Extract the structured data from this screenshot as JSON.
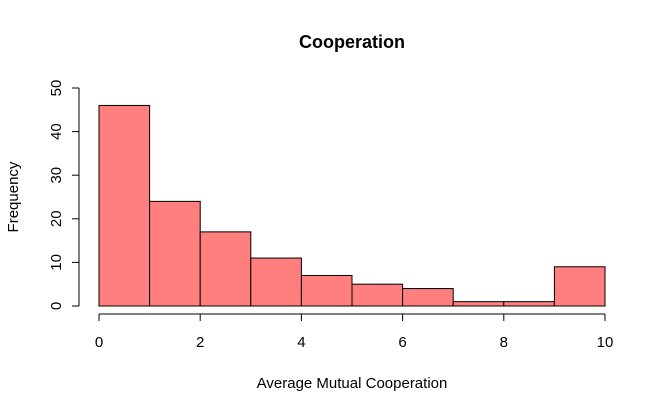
{
  "chart_data": {
    "type": "bar",
    "title": "Cooperation",
    "xlabel": "Average Mutual Cooperation",
    "ylabel": "Frequency",
    "bins": [
      [
        0,
        1
      ],
      [
        1,
        2
      ],
      [
        2,
        3
      ],
      [
        3,
        4
      ],
      [
        4,
        5
      ],
      [
        5,
        6
      ],
      [
        6,
        7
      ],
      [
        7,
        8
      ],
      [
        8,
        9
      ],
      [
        9,
        10
      ]
    ],
    "values": [
      46,
      24,
      17,
      11,
      7,
      5,
      4,
      1,
      1,
      9
    ],
    "xlim": [
      0,
      10
    ],
    "ylim": [
      0,
      50
    ],
    "x_ticks": [
      0,
      2,
      4,
      6,
      8,
      10
    ],
    "y_ticks": [
      0,
      10,
      20,
      30,
      40,
      50
    ],
    "grid": false,
    "bar_color": "#ff7f7f"
  }
}
